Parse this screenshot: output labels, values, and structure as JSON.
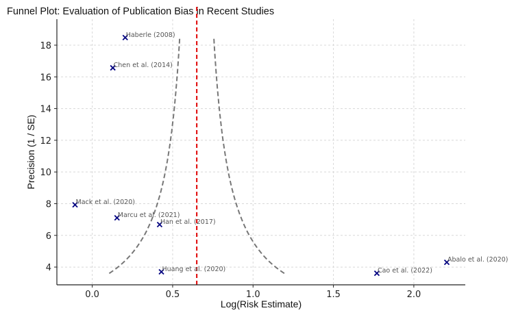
{
  "chart_data": {
    "type": "scatter",
    "title": "Funnel Plot: Evaluation of Publication Bias in Recent Studies",
    "xlabel": "Log(Risk Estimate)",
    "ylabel": "Precision (1 / SE)",
    "xlim": [
      -0.22,
      2.32
    ],
    "ylim": [
      2.88,
      19.64
    ],
    "xticks": [
      0.0,
      0.5,
      1.0,
      1.5,
      2.0
    ],
    "xtick_labels": [
      "0.0",
      "0.5",
      "1.0",
      "1.5",
      "2.0"
    ],
    "yticks": [
      4,
      6,
      8,
      10,
      12,
      14,
      16,
      18
    ],
    "ytick_labels": [
      "4",
      "6",
      "8",
      "10",
      "12",
      "14",
      "16",
      "18"
    ],
    "grid": true,
    "marker_color": "#000080",
    "points": [
      {
        "label": "Haberle (2008)",
        "x": 0.205,
        "y": 18.48
      },
      {
        "label": "Chen et al. (2014)",
        "x": 0.128,
        "y": 16.57
      },
      {
        "label": "Mack et al. (2020)",
        "x": -0.107,
        "y": 7.93
      },
      {
        "label": "Marcu et al. (2021)",
        "x": 0.154,
        "y": 7.11
      },
      {
        "label": "Han et al. (2017)",
        "x": 0.419,
        "y": 6.68
      },
      {
        "label": "Huang et al. (2020)",
        "x": 0.43,
        "y": 3.7
      },
      {
        "label": "Cao et al. (2022)",
        "x": 1.77,
        "y": 3.61
      },
      {
        "label": "Abalo et al. (2020)",
        "x": 2.205,
        "y": 4.3
      }
    ],
    "summary_line": {
      "x": 0.65,
      "color": "#e00000",
      "style": "dashed"
    },
    "funnel": {
      "center": 0.65,
      "z": 1.96,
      "precision_range": [
        3.6,
        18.5
      ],
      "color": "#777777",
      "style": "dashed"
    }
  }
}
